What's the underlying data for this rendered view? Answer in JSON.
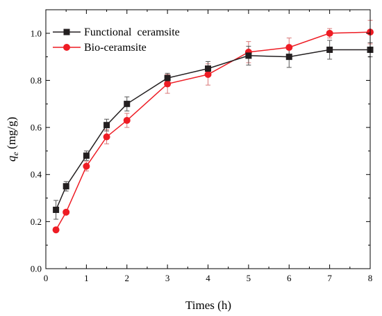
{
  "chart_data": {
    "type": "line",
    "xlabel": "Times (h)",
    "ylabel_symbol": "q",
    "ylabel_subscript": "e",
    "ylabel_unit": " (mg/g)",
    "xlim": [
      0,
      8
    ],
    "ylim": [
      0,
      1.1
    ],
    "xticks": [
      0,
      1,
      2,
      3,
      4,
      5,
      6,
      7,
      8
    ],
    "yticks": [
      0.0,
      0.2,
      0.4,
      0.6,
      0.8,
      1.0
    ],
    "xtick_labels": [
      "0",
      "1",
      "2",
      "3",
      "4",
      "5",
      "6",
      "7",
      "8"
    ],
    "ytick_labels": [
      "0.0",
      "0.2",
      "0.4",
      "0.6",
      "0.8",
      "1.0"
    ],
    "grid": false,
    "legend_position": "top-left",
    "series": [
      {
        "name": "Functional  ceramsite",
        "marker": "square",
        "color": "#231f20",
        "x": [
          0.25,
          0.5,
          1,
          1.5,
          2,
          3,
          4,
          5,
          6,
          7,
          8
        ],
        "y": [
          0.25,
          0.35,
          0.48,
          0.61,
          0.7,
          0.81,
          0.85,
          0.905,
          0.9,
          0.93,
          0.93
        ],
        "err": [
          0.04,
          0.02,
          0.02,
          0.025,
          0.03,
          0.02,
          0.03,
          0.04,
          0.045,
          0.04,
          0.03
        ]
      },
      {
        "name": "Bio-ceramsite",
        "marker": "circle",
        "color": "#ee1c24",
        "x": [
          0.25,
          0.5,
          1,
          1.5,
          2,
          3,
          4,
          5,
          6,
          7,
          8
        ],
        "y": [
          0.165,
          0.24,
          0.435,
          0.56,
          0.63,
          0.785,
          0.825,
          0.92,
          0.94,
          1.0,
          1.005
        ],
        "err": [
          0.0,
          0.0,
          0.02,
          0.03,
          0.03,
          0.04,
          0.045,
          0.045,
          0.04,
          0.02,
          0.05
        ]
      }
    ]
  }
}
